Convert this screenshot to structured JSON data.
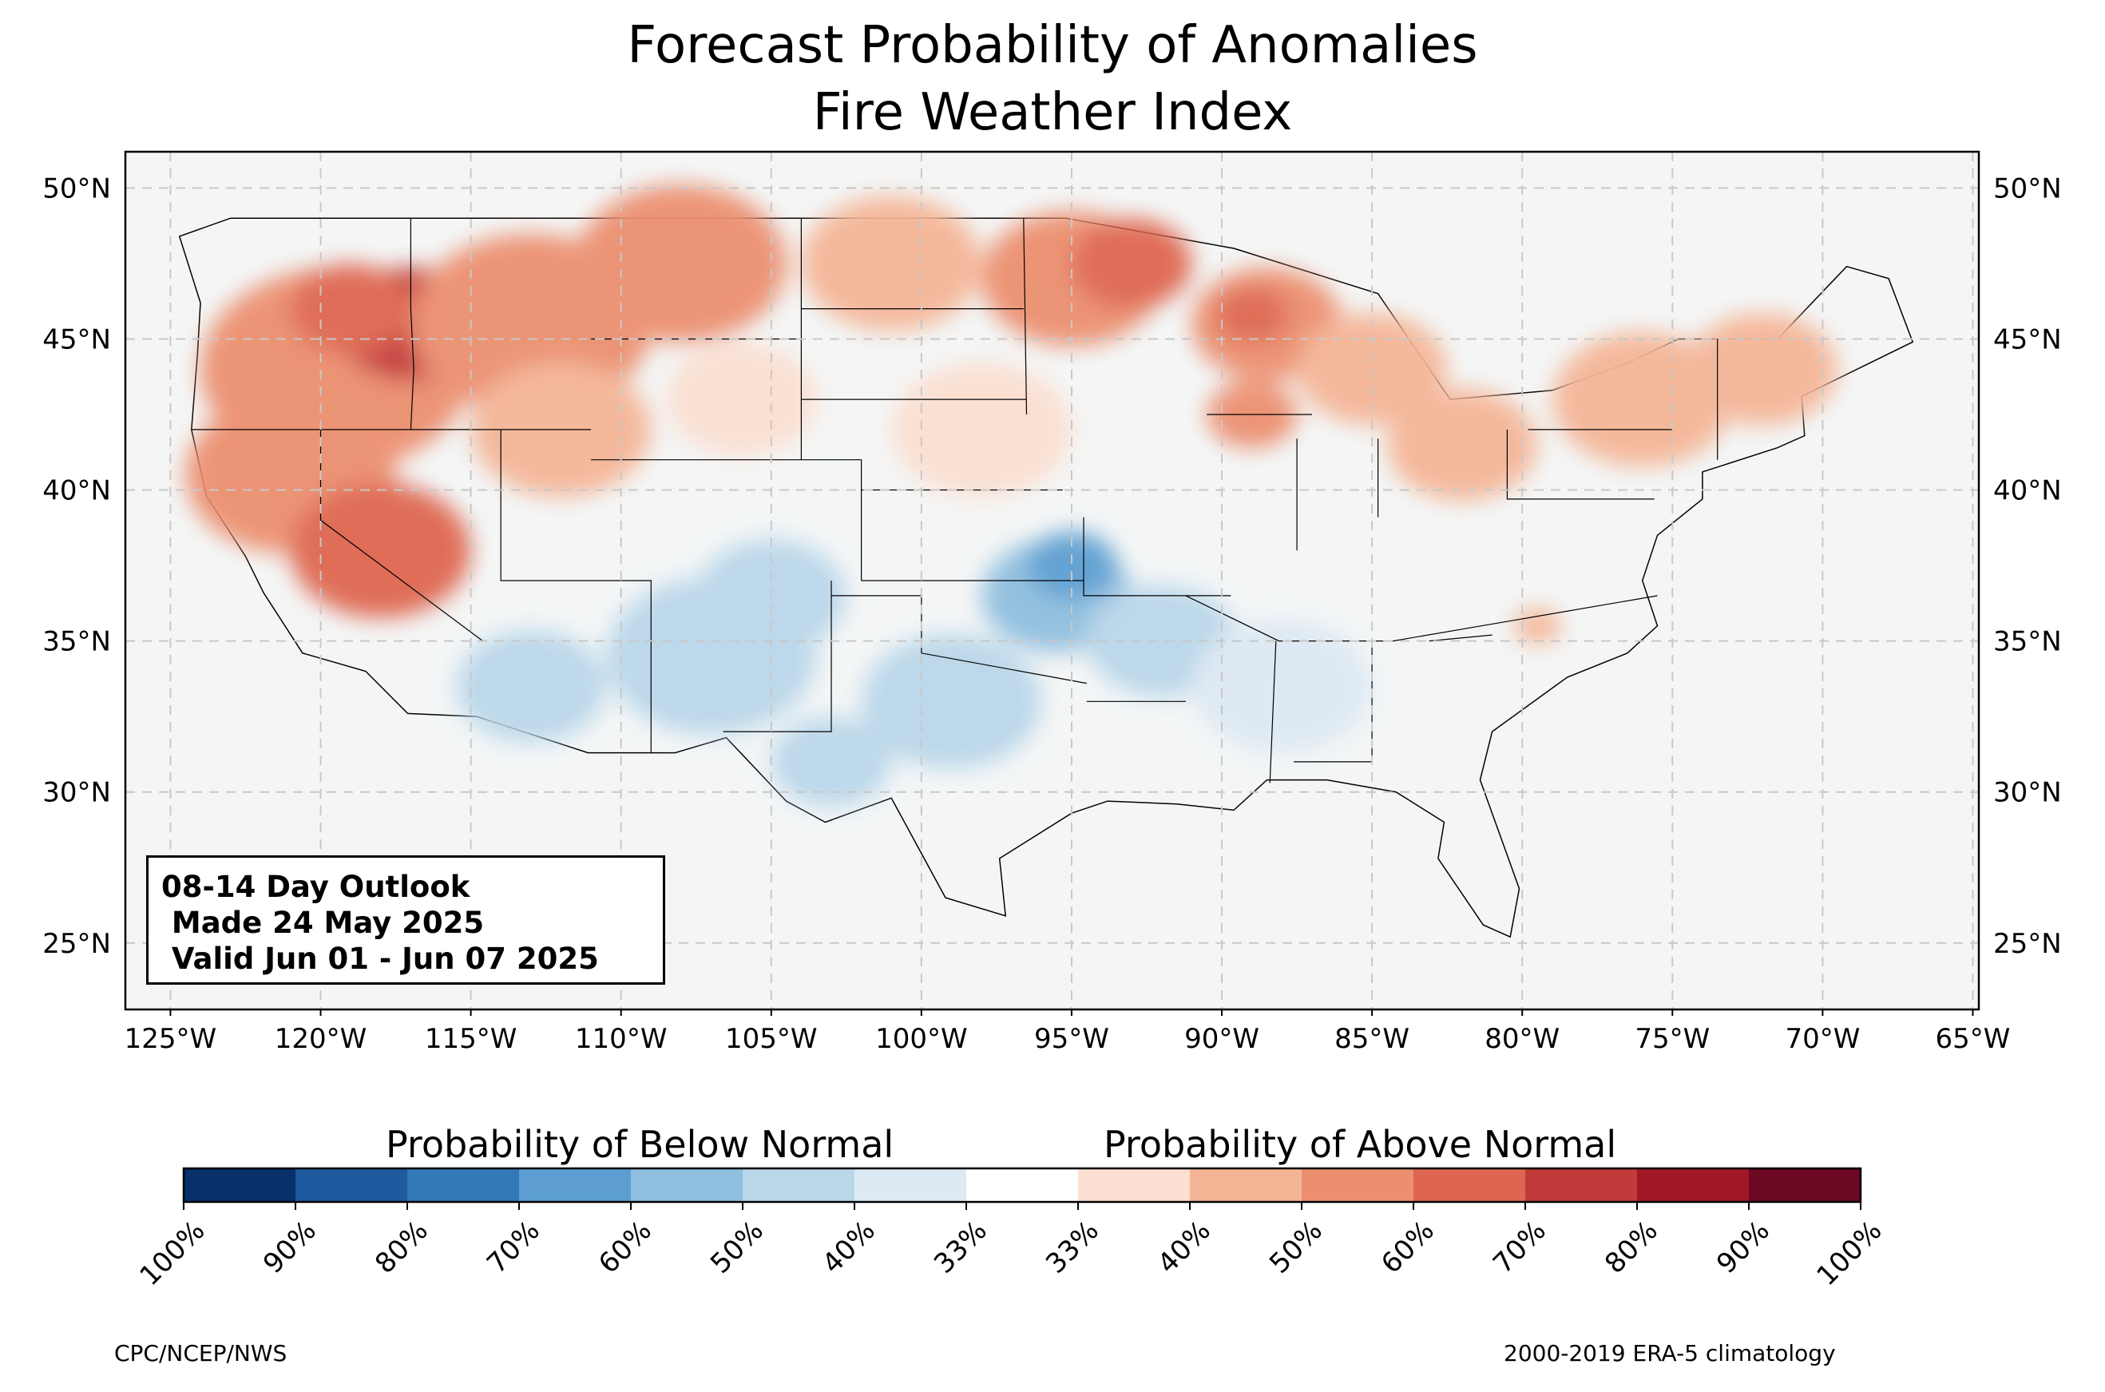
{
  "title": {
    "line1": "Forecast Probability of Anomalies",
    "line2": "Fire Weather Index"
  },
  "map": {
    "lon_range": [
      -126.5,
      -64.8
    ],
    "lat_range": [
      22.8,
      51.2
    ],
    "gridlines": true,
    "lon_ticks": [
      "125°W",
      "120°W",
      "115°W",
      "110°W",
      "105°W",
      "100°W",
      "95°W",
      "90°W",
      "85°W",
      "80°W",
      "75°W",
      "70°W",
      "65°W"
    ],
    "lat_ticks": [
      "50°N",
      "45°N",
      "40°N",
      "35°N",
      "30°N",
      "25°N"
    ],
    "above_normal_regions": [
      "Pacific Northwest",
      "California",
      "Great Basin",
      "Northern Rockies",
      "Northern Plains",
      "Upper Midwest",
      "Great Lakes",
      "Northeast"
    ],
    "below_normal_regions": [
      "Southwest",
      "Southern Plains",
      "Mid-South",
      "Tennessee Valley"
    ]
  },
  "outlook_box": {
    "line1": "08-14 Day Outlook",
    "line2": " Made 24 May 2025",
    "line3": " Valid Jun 01 - Jun 07 2025"
  },
  "colorbar": {
    "below_title": "Probability of Below Normal",
    "above_title": "Probability of Above Normal",
    "tick_labels": [
      "100%",
      "90%",
      "80%",
      "70%",
      "60%",
      "50%",
      "40%",
      "33%",
      "33%",
      "40%",
      "50%",
      "60%",
      "70%",
      "80%",
      "90%",
      "100%"
    ],
    "colors": [
      "#08306b",
      "#1d5a9e",
      "#3379b8",
      "#5d9fd2",
      "#90bfdf",
      "#bad7ea",
      "#dde9f3",
      "#ffffff",
      "#fbdfd0",
      "#f4b597",
      "#ec8f70",
      "#de6650",
      "#c33a3a",
      "#a21727",
      "#6c0822"
    ]
  },
  "footer": {
    "left": "CPC/NCEP/NWS",
    "right": "2000-2019 ERA-5 climatology"
  }
}
